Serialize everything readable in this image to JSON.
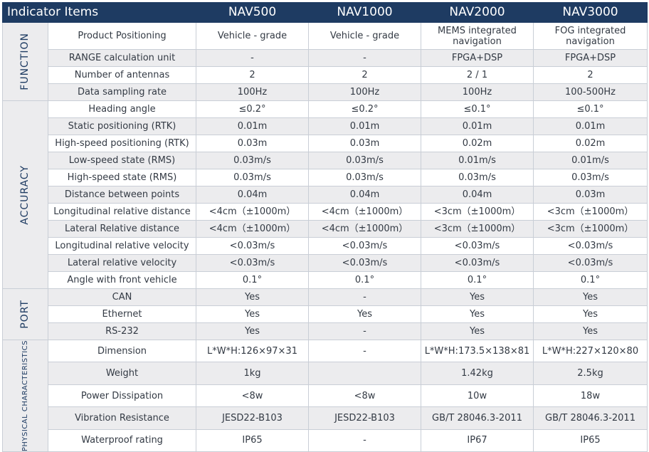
{
  "header": {
    "items": "Indicator Items",
    "products": [
      "NAV500",
      "NAV1000",
      "NAV2000",
      "NAV3000"
    ]
  },
  "categories": [
    {
      "name": "FUNCTION",
      "rows": [
        {
          "item": "Product Positioning",
          "values": [
            "Vehicle - grade",
            "Vehicle - grade",
            "MEMS integrated navigation",
            "FOG integrated navigation"
          ]
        },
        {
          "item": "RANGE calculation unit",
          "values": [
            "-",
            "-",
            "FPGA+DSP",
            "FPGA+DSP"
          ]
        },
        {
          "item": "Number of antennas",
          "values": [
            "2",
            "2",
            "2 / 1",
            "2"
          ]
        },
        {
          "item": "Data sampling rate",
          "values": [
            "100Hz",
            "100Hz",
            "100Hz",
            "100-500Hz"
          ]
        }
      ]
    },
    {
      "name": "ACCURACY",
      "rows": [
        {
          "item": "Heading angle",
          "values": [
            "≤0.2°",
            "≤0.2°",
            "≤0.1°",
            "≤0.1°"
          ]
        },
        {
          "item": "Static positioning (RTK)",
          "values": [
            "0.01m",
            "0.01m",
            "0.01m",
            "0.01m"
          ]
        },
        {
          "item": "High-speed positioning (RTK)",
          "values": [
            "0.03m",
            "0.03m",
            "0.02m",
            "0.02m"
          ]
        },
        {
          "item": "Low-speed state (RMS)",
          "values": [
            "0.03m/s",
            "0.03m/s",
            "0.01m/s",
            "0.01m/s"
          ]
        },
        {
          "item": "High-speed state (RMS)",
          "values": [
            "0.03m/s",
            "0.03m/s",
            "0.03m/s",
            "0.03m/s"
          ]
        },
        {
          "item": "Distance between points",
          "values": [
            "0.04m",
            "0.04m",
            "0.04m",
            "0.03m"
          ]
        },
        {
          "item": "Longitudinal relative distance",
          "values": [
            "<4cm（±1000m）",
            "<4cm（±1000m）",
            "<3cm（±1000m）",
            "<3cm（±1000m）"
          ]
        },
        {
          "item": "Lateral Relative distance",
          "values": [
            "<4cm（±1000m）",
            "<4cm（±1000m）",
            "<3cm（±1000m）",
            "<3cm（±1000m）"
          ]
        },
        {
          "item": "Longitudinal relative velocity",
          "values": [
            "<0.03m/s",
            "<0.03m/s",
            "<0.03m/s",
            "<0.03m/s"
          ]
        },
        {
          "item": "Lateral relative velocity",
          "values": [
            "<0.03m/s",
            "<0.03m/s",
            "<0.03m/s",
            "<0.03m/s"
          ]
        },
        {
          "item": "Angle with front vehicle",
          "values": [
            "0.1°",
            "0.1°",
            "0.1°",
            "0.1°"
          ]
        }
      ]
    },
    {
      "name": "PORT",
      "rows": [
        {
          "item": "CAN",
          "values": [
            "Yes",
            "-",
            "Yes",
            "Yes"
          ]
        },
        {
          "item": "Ethernet",
          "values": [
            "Yes",
            "Yes",
            "Yes",
            "Yes"
          ]
        },
        {
          "item": "RS-232",
          "values": [
            "Yes",
            "-",
            "Yes",
            "Yes"
          ]
        }
      ]
    },
    {
      "name": "PHYSICAL CHARACTERISTICS",
      "rows": [
        {
          "item": "Dimension",
          "values": [
            "L*W*H:126×97×31",
            "-",
            "L*W*H:173.5×138×81",
            "L*W*H:227×120×80"
          ]
        },
        {
          "item": "Weight",
          "values": [
            "1kg",
            "",
            "1.42kg",
            "2.5kg"
          ]
        },
        {
          "item": "Power Dissipation",
          "values": [
            "<8w",
            "<8w",
            "10w",
            "18w"
          ]
        },
        {
          "item": "Vibration Resistance",
          "values": [
            "JESD22-B103",
            "JESD22-B103",
            "GB/T 28046.3-2011",
            "GB/T 28046.3-2011"
          ]
        },
        {
          "item": "Waterproof rating",
          "values": [
            "IP65",
            "-",
            "IP67",
            "IP65"
          ]
        }
      ]
    }
  ]
}
